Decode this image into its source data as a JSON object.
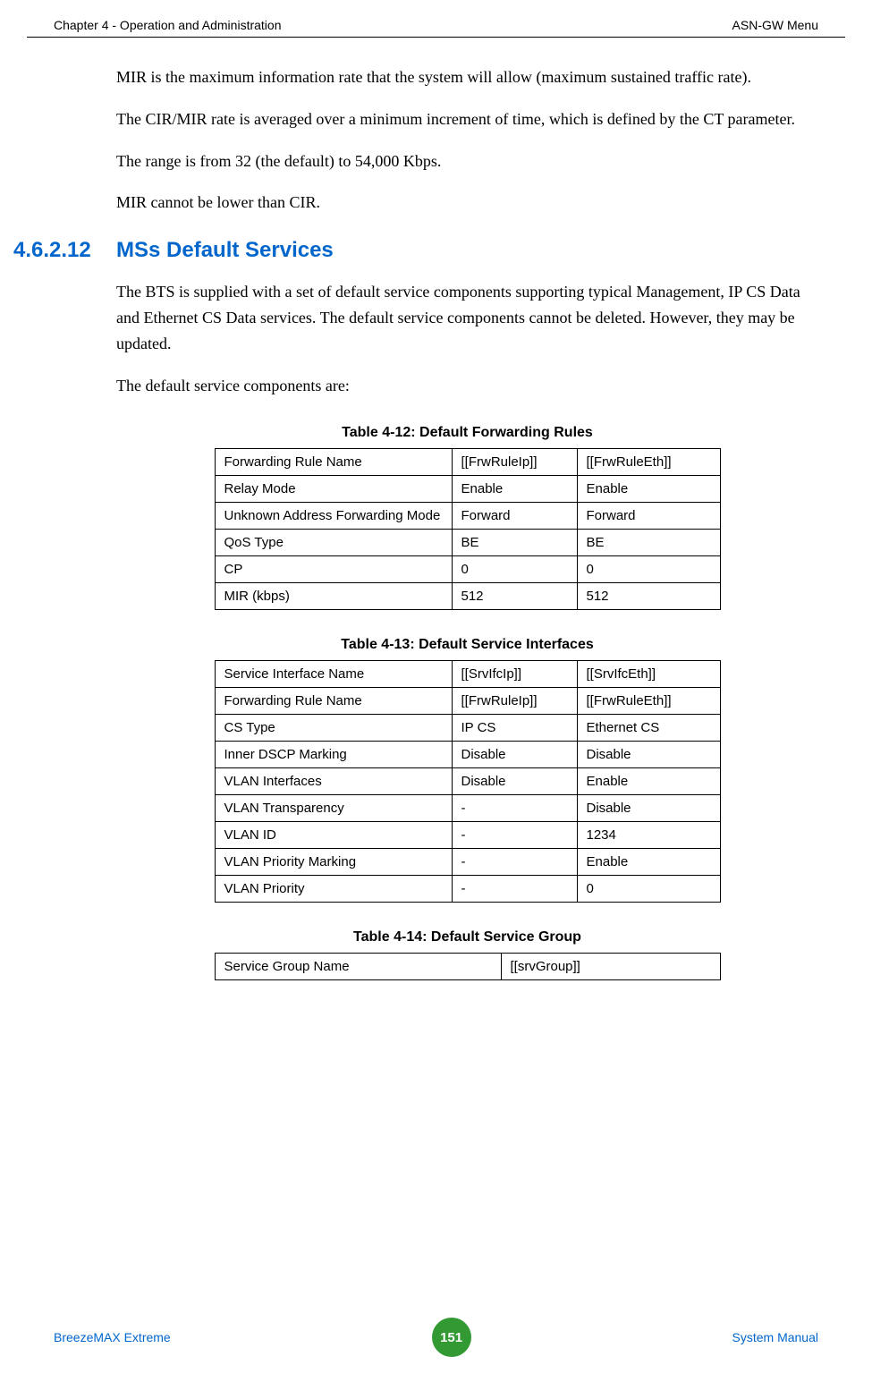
{
  "header": {
    "left": "Chapter 4 - Operation and Administration",
    "right": "ASN-GW Menu"
  },
  "body": {
    "p1": "MIR is the maximum information rate that the system will allow (maximum sustained traffic rate).",
    "p2": "The CIR/MIR rate is averaged over a minimum increment of time, which is defined by the CT parameter.",
    "p3": "The range is from 32 (the default) to 54,000 Kbps.",
    "p4": "MIR cannot be lower than CIR.",
    "sectionNumber": "4.6.2.12",
    "sectionTitle": "MSs Default Services",
    "p5": "The BTS is supplied with a set of default service components supporting typical Management, IP CS Data and Ethernet CS Data services. The default service components cannot be deleted. However, they may be updated.",
    "p6": "The default service components are:"
  },
  "table412": {
    "caption": "Table 4-12: Default Forwarding Rules",
    "rows": [
      [
        "Forwarding Rule Name",
        "[[FrwRuleIp]]",
        "[[FrwRuleEth]]"
      ],
      [
        "Relay Mode",
        "Enable",
        "Enable"
      ],
      [
        "Unknown Address Forwarding Mode",
        "Forward",
        "Forward"
      ],
      [
        "QoS Type",
        "BE",
        "BE"
      ],
      [
        "CP",
        "0",
        "0"
      ],
      [
        "MIR (kbps)",
        "512",
        "512"
      ]
    ]
  },
  "table413": {
    "caption": "Table 4-13: Default Service Interfaces",
    "rows": [
      [
        "Service Interface Name",
        "[[SrvIfcIp]]",
        "[[SrvIfcEth]]"
      ],
      [
        "Forwarding Rule Name",
        "[[FrwRuleIp]]",
        "[[FrwRuleEth]]"
      ],
      [
        "CS Type",
        "IP CS",
        "Ethernet CS"
      ],
      [
        "Inner DSCP Marking",
        "Disable",
        "Disable"
      ],
      [
        "VLAN Interfaces",
        "Disable",
        "Enable"
      ],
      [
        "VLAN Transparency",
        "-",
        "Disable"
      ],
      [
        "VLAN  ID",
        "-",
        "1234"
      ],
      [
        "VLAN Priority Marking",
        "-",
        "Enable"
      ],
      [
        "VLAN Priority",
        "-",
        "0"
      ]
    ]
  },
  "table414": {
    "caption": "Table 4-14: Default Service Group",
    "rows": [
      [
        "Service Group Name",
        "[[srvGroup]]"
      ]
    ]
  },
  "footer": {
    "left": "BreezeMAX Extreme",
    "pageNumber": "151",
    "right": "System Manual"
  },
  "colors": {
    "heading": "#0066cc",
    "footerText": "#0066cc",
    "pageNumBg": "#339933",
    "pageNumFg": "#ffffff",
    "border": "#000000",
    "text": "#000000",
    "background": "#ffffff"
  }
}
